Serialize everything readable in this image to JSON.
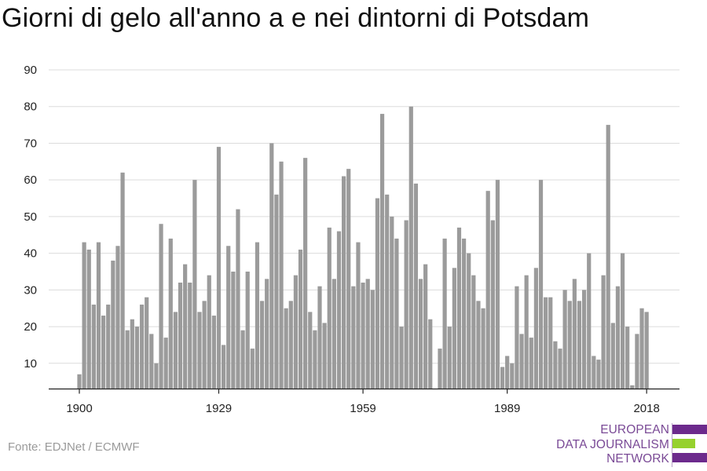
{
  "header": {
    "title": "Giorni di gelo all'anno a e nei dintorni di Potsdam"
  },
  "footer": {
    "source": "Fonte: EDJNet / ECMWF"
  },
  "logo": {
    "lines": [
      "EUROPEAN",
      "DATA JOURNALISM",
      "NETWORK"
    ],
    "colors": {
      "text": "#7a4a96",
      "purple": "#6c2a8c",
      "green": "#96d12e"
    }
  },
  "chart_data": {
    "type": "bar",
    "title": "Giorni di gelo all'anno a e nei dintorni di Potsdam",
    "xlabel": "",
    "ylabel": "",
    "ylim": [
      3,
      90
    ],
    "yticks": [
      10,
      20,
      30,
      40,
      50,
      60,
      70,
      80,
      90
    ],
    "xticks": [
      "1900",
      "1929",
      "1959",
      "1989",
      "2018"
    ],
    "grid": true,
    "bar_color": "#9b9b9b",
    "x": [
      1900,
      1901,
      1902,
      1903,
      1904,
      1905,
      1906,
      1907,
      1908,
      1909,
      1910,
      1911,
      1912,
      1913,
      1914,
      1915,
      1916,
      1917,
      1918,
      1919,
      1920,
      1921,
      1922,
      1923,
      1924,
      1925,
      1926,
      1927,
      1928,
      1929,
      1930,
      1931,
      1932,
      1933,
      1934,
      1935,
      1936,
      1937,
      1938,
      1939,
      1940,
      1941,
      1942,
      1943,
      1944,
      1945,
      1946,
      1947,
      1948,
      1949,
      1950,
      1951,
      1952,
      1953,
      1954,
      1955,
      1956,
      1957,
      1958,
      1959,
      1960,
      1961,
      1962,
      1963,
      1964,
      1965,
      1966,
      1967,
      1968,
      1969,
      1970,
      1971,
      1972,
      1973,
      1974,
      1975,
      1976,
      1977,
      1978,
      1979,
      1980,
      1981,
      1982,
      1983,
      1984,
      1985,
      1986,
      1987,
      1988,
      1989,
      1990,
      1991,
      1992,
      1993,
      1994,
      1995,
      1996,
      1997,
      1998,
      1999,
      2000,
      2001,
      2002,
      2003,
      2004,
      2005,
      2006,
      2007,
      2008,
      2009,
      2010,
      2011,
      2012,
      2013,
      2014,
      2015,
      2016,
      2017,
      2018
    ],
    "values": [
      7,
      43,
      41,
      26,
      43,
      23,
      26,
      38,
      42,
      62,
      19,
      22,
      20,
      26,
      28,
      18,
      10,
      48,
      17,
      44,
      24,
      32,
      37,
      32,
      60,
      24,
      27,
      34,
      23,
      69,
      15,
      42,
      35,
      52,
      19,
      35,
      14,
      43,
      27,
      33,
      70,
      56,
      65,
      25,
      27,
      34,
      41,
      66,
      24,
      19,
      31,
      21,
      47,
      33,
      46,
      61,
      63,
      31,
      43,
      32,
      33,
      30,
      55,
      78,
      56,
      50,
      44,
      20,
      49,
      80,
      59,
      33,
      37,
      22,
      3,
      14,
      44,
      20,
      36,
      47,
      44,
      40,
      34,
      27,
      25,
      57,
      49,
      60,
      9,
      12,
      10,
      31,
      18,
      34,
      17,
      36,
      60,
      28,
      28,
      16,
      14,
      30,
      27,
      33,
      27,
      30,
      40,
      12,
      11,
      34,
      75,
      21,
      31,
      40,
      20,
      4,
      18,
      25,
      24
    ]
  }
}
